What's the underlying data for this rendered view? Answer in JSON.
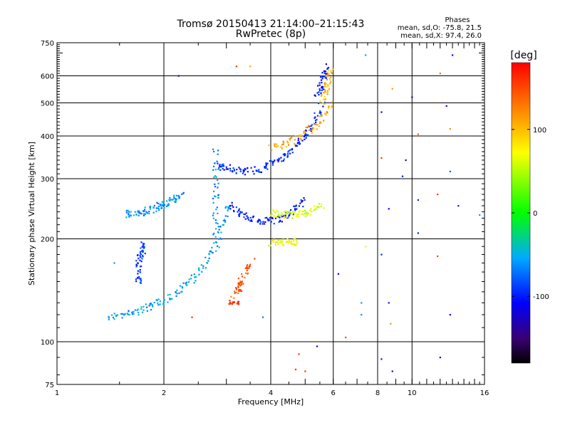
{
  "chart_data": {
    "type": "scatter",
    "title": "Tromsø 20150413 21:14:00–21:15:43",
    "subtitle": "RwPretec (8p)",
    "stats": {
      "heading": "Phases",
      "line1": "mean, sd,O: -75.8, 21.5",
      "line2": "mean, sd,X:  97.4, 26.0"
    },
    "xlabel": "Frequency [MHz]",
    "ylabel": "Stationary phase Virtual Height [km]",
    "x_scale": "log",
    "y_scale": "log",
    "xlim": [
      1,
      16
    ],
    "ylim": [
      75,
      750
    ],
    "x_ticks": [
      1,
      2,
      4,
      6,
      8,
      10,
      16
    ],
    "x_tick_labels": [
      "1",
      "2",
      "4",
      "6",
      "8",
      "10",
      "16"
    ],
    "y_ticks": [
      75,
      100,
      200,
      300,
      400,
      500,
      600,
      750
    ],
    "y_tick_labels": [
      "75",
      "100",
      "200",
      "300",
      "400",
      "500",
      "600",
      "750"
    ],
    "grid": true,
    "colorbar": {
      "label": "[deg]",
      "range": [
        -180,
        180
      ],
      "ticks": [
        -100,
        0,
        100
      ],
      "tick_labels": [
        "-100",
        "0",
        "100"
      ]
    },
    "traces": [
      {
        "name": "low-layer-trace",
        "x": [
          1.4,
          1.55,
          1.7,
          1.85,
          2.0,
          2.2,
          2.4,
          2.6,
          2.8,
          2.95,
          3.05
        ],
        "y": [
          118,
          120,
          123,
          127,
          132,
          140,
          152,
          168,
          190,
          220,
          255
        ],
        "phase": -55
      },
      {
        "name": "f-layer-o-trace",
        "x": [
          2.85,
          3.0,
          3.2,
          3.5,
          3.8,
          4.1,
          4.4,
          4.7,
          5.0,
          5.3,
          5.6
        ],
        "y": [
          330,
          322,
          316,
          316,
          322,
          335,
          350,
          372,
          400,
          440,
          500
        ],
        "phase": -95
      },
      {
        "name": "f-layer-o-cusp",
        "x": [
          5.4,
          5.55,
          5.65,
          5.75
        ],
        "y": [
          520,
          560,
          600,
          640
        ],
        "phase": -105
      },
      {
        "name": "mid-layer-trace",
        "x": [
          3.1,
          3.3,
          3.5,
          3.8,
          4.1,
          4.4,
          4.7,
          5.0
        ],
        "y": [
          250,
          238,
          230,
          225,
          226,
          232,
          245,
          262
        ],
        "phase": -100
      },
      {
        "name": "f-layer-x-trace",
        "x": [
          4.0,
          4.4,
          4.8,
          5.2,
          5.6,
          6.0
        ],
        "y": [
          370,
          380,
          395,
          420,
          450,
          500
        ],
        "phase": 110
      },
      {
        "name": "f-layer-x-cusp",
        "x": [
          5.6,
          5.7,
          5.8,
          5.9
        ],
        "y": [
          500,
          540,
          580,
          620
        ],
        "phase": 100
      },
      {
        "name": "spread-layer-trace",
        "x": [
          4.0,
          4.3,
          4.6,
          4.9,
          5.2,
          5.6
        ],
        "y": [
          238,
          236,
          235,
          236,
          240,
          250
        ],
        "phase": 60
      },
      {
        "name": "left-arm-trace",
        "x": [
          1.55,
          1.65,
          1.75,
          1.85,
          1.95,
          2.05,
          2.15,
          2.25
        ],
        "y": [
          236,
          238,
          240,
          244,
          250,
          256,
          262,
          268
        ],
        "phase": -60
      },
      {
        "name": "cyan-vertical-column",
        "x": [
          2.8,
          2.8,
          2.8,
          2.8
        ],
        "y": [
          200,
          250,
          300,
          370
        ],
        "phase": -60
      },
      {
        "name": "lower-x-trace",
        "x": [
          3.1,
          3.3,
          3.5
        ],
        "y": [
          135,
          150,
          170
        ],
        "phase": 140
      },
      {
        "name": "low-sporadic-trace",
        "x": [
          4.0,
          4.3,
          4.6,
          4.8
        ],
        "y": [
          195,
          195,
          195,
          196
        ],
        "phase": 70
      },
      {
        "name": "left-arm-low-trace",
        "x": [
          1.7,
          1.7,
          1.7,
          1.75,
          1.75
        ],
        "y": [
          150,
          160,
          175,
          185,
          195
        ],
        "phase": -90
      }
    ],
    "scatter_points": [
      {
        "x": 2.2,
        "y": 600,
        "phase": -140
      },
      {
        "x": 3.2,
        "y": 640,
        "phase": 150
      },
      {
        "x": 3.5,
        "y": 640,
        "phase": 110
      },
      {
        "x": 7.4,
        "y": 690,
        "phase": -60
      },
      {
        "x": 13.0,
        "y": 690,
        "phase": -110
      },
      {
        "x": 12.0,
        "y": 610,
        "phase": 140
      },
      {
        "x": 8.8,
        "y": 550,
        "phase": 115
      },
      {
        "x": 10.0,
        "y": 520,
        "phase": -105
      },
      {
        "x": 12.5,
        "y": 490,
        "phase": -110
      },
      {
        "x": 8.2,
        "y": 470,
        "phase": -110
      },
      {
        "x": 12.8,
        "y": 420,
        "phase": 120
      },
      {
        "x": 10.4,
        "y": 405,
        "phase": 140
      },
      {
        "x": 8.2,
        "y": 345,
        "phase": 155
      },
      {
        "x": 9.6,
        "y": 340,
        "phase": -140
      },
      {
        "x": 12.8,
        "y": 315,
        "phase": -80
      },
      {
        "x": 9.4,
        "y": 305,
        "phase": -100
      },
      {
        "x": 11.8,
        "y": 270,
        "phase": 160
      },
      {
        "x": 10.4,
        "y": 260,
        "phase": -100
      },
      {
        "x": 13.5,
        "y": 250,
        "phase": -100
      },
      {
        "x": 15.5,
        "y": 235,
        "phase": -60
      },
      {
        "x": 8.6,
        "y": 245,
        "phase": -110
      },
      {
        "x": 10.4,
        "y": 208,
        "phase": -100
      },
      {
        "x": 7.4,
        "y": 190,
        "phase": 60
      },
      {
        "x": 8.2,
        "y": 180,
        "phase": -100
      },
      {
        "x": 11.8,
        "y": 178,
        "phase": 150
      },
      {
        "x": 6.2,
        "y": 158,
        "phase": -110
      },
      {
        "x": 7.2,
        "y": 130,
        "phase": -60
      },
      {
        "x": 8.6,
        "y": 130,
        "phase": -100
      },
      {
        "x": 7.2,
        "y": 120,
        "phase": -60
      },
      {
        "x": 12.8,
        "y": 120,
        "phase": -110
      },
      {
        "x": 8.7,
        "y": 113,
        "phase": 120
      },
      {
        "x": 6.5,
        "y": 103,
        "phase": 150
      },
      {
        "x": 5.4,
        "y": 97,
        "phase": -130
      },
      {
        "x": 4.8,
        "y": 92,
        "phase": 160
      },
      {
        "x": 8.2,
        "y": 89,
        "phase": -100
      },
      {
        "x": 12.0,
        "y": 90,
        "phase": -110
      },
      {
        "x": 4.7,
        "y": 83,
        "phase": 160
      },
      {
        "x": 5.0,
        "y": 82,
        "phase": 160
      },
      {
        "x": 8.8,
        "y": 82,
        "phase": -130
      },
      {
        "x": 1.45,
        "y": 170,
        "phase": -60
      },
      {
        "x": 2.4,
        "y": 118,
        "phase": 160
      },
      {
        "x": 3.6,
        "y": 175,
        "phase": 150
      },
      {
        "x": 3.8,
        "y": 118,
        "phase": -70
      }
    ],
    "dense_bands": [
      {
        "x": 3.1,
        "y": 130,
        "phase": 160
      },
      {
        "x": 3.2,
        "y": 130,
        "phase": 160
      },
      {
        "x": 3.25,
        "y": 142,
        "phase": 150
      },
      {
        "x": 3.3,
        "y": 148,
        "phase": 150
      },
      {
        "x": 3.45,
        "y": 165,
        "phase": 150
      }
    ]
  }
}
